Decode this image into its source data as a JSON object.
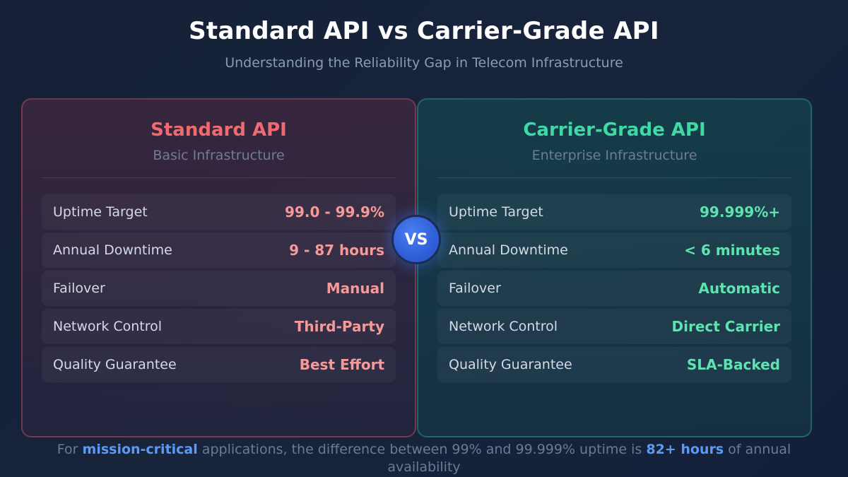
{
  "header": {
    "title": "Standard API vs Carrier-Grade API",
    "subtitle": "Understanding the Reliability Gap in Telecom Infrastructure"
  },
  "standard": {
    "title": "Standard API",
    "subtitle": "Basic Infrastructure",
    "rows": [
      {
        "label": "Uptime Target",
        "value": "99.0 - 99.9%"
      },
      {
        "label": "Annual Downtime",
        "value": "9 - 87 hours"
      },
      {
        "label": "Failover",
        "value": "Manual"
      },
      {
        "label": "Network Control",
        "value": "Third-Party"
      },
      {
        "label": "Quality Guarantee",
        "value": "Best Effort"
      }
    ]
  },
  "carrier": {
    "title": "Carrier-Grade API",
    "subtitle": "Enterprise Infrastructure",
    "rows": [
      {
        "label": "Uptime Target",
        "value": "99.999%+"
      },
      {
        "label": "Annual Downtime",
        "value": "< 6 minutes"
      },
      {
        "label": "Failover",
        "value": "Automatic"
      },
      {
        "label": "Network Control",
        "value": "Direct Carrier"
      },
      {
        "label": "Quality Guarantee",
        "value": "SLA-Backed"
      }
    ]
  },
  "vs_label": "VS",
  "footer": {
    "part1": "For ",
    "highlight1": "mission-critical",
    "part2": " applications, the difference between 99% and 99.999% uptime is ",
    "highlight2": "82+ hours",
    "part3": " of annual availability"
  },
  "colors": {
    "standard_accent": "#f06a6f",
    "carrier_accent": "#3ed9a4",
    "vs_badge": "#2f5fd8",
    "highlight": "#5a9cf5"
  }
}
